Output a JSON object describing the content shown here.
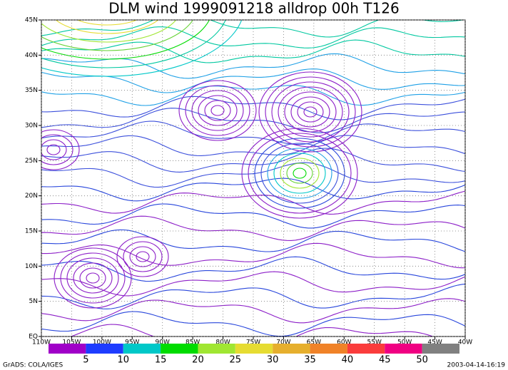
{
  "map": {
    "title": "DLM wind 1999091218 alldrop 00h T126",
    "lon_range": [
      -110,
      -40
    ],
    "lat_range": [
      0,
      45
    ],
    "lon_ticks": [
      {
        "value": -110,
        "label": "110W"
      },
      {
        "value": -105,
        "label": "105W"
      },
      {
        "value": -100,
        "label": "100W"
      },
      {
        "value": -95,
        "label": "95W"
      },
      {
        "value": -90,
        "label": "90W"
      },
      {
        "value": -85,
        "label": "85W"
      },
      {
        "value": -80,
        "label": "80W"
      },
      {
        "value": -75,
        "label": "75W"
      },
      {
        "value": -70,
        "label": "70W"
      },
      {
        "value": -65,
        "label": "65W"
      },
      {
        "value": -60,
        "label": "60W"
      },
      {
        "value": -55,
        "label": "55W"
      },
      {
        "value": -50,
        "label": "50W"
      },
      {
        "value": -45,
        "label": "45W"
      },
      {
        "value": -40,
        "label": "40W"
      }
    ],
    "lat_ticks": [
      {
        "value": 0,
        "label": "EQ"
      },
      {
        "value": 5,
        "label": "5N"
      },
      {
        "value": 10,
        "label": "10N"
      },
      {
        "value": 15,
        "label": "15N"
      },
      {
        "value": 20,
        "label": "20N"
      },
      {
        "value": 25,
        "label": "25N"
      },
      {
        "value": 30,
        "label": "30N"
      },
      {
        "value": 35,
        "label": "35N"
      },
      {
        "value": 40,
        "label": "40N"
      },
      {
        "value": 45,
        "label": "45N"
      }
    ],
    "grid": true,
    "colorbar": {
      "levels": [
        5,
        10,
        15,
        20,
        25,
        30,
        35,
        40,
        45,
        50
      ],
      "colors": [
        "#a000c8",
        "#1e3cff",
        "#00c8c8",
        "#00dc00",
        "#a0e632",
        "#e6dc32",
        "#e6af2d",
        "#f08228",
        "#fa3c3c",
        "#f00082",
        "#808080"
      ]
    },
    "footer_left": "GrADS: COLA/IGES",
    "footer_right": "2003-04-14-16:19"
  }
}
